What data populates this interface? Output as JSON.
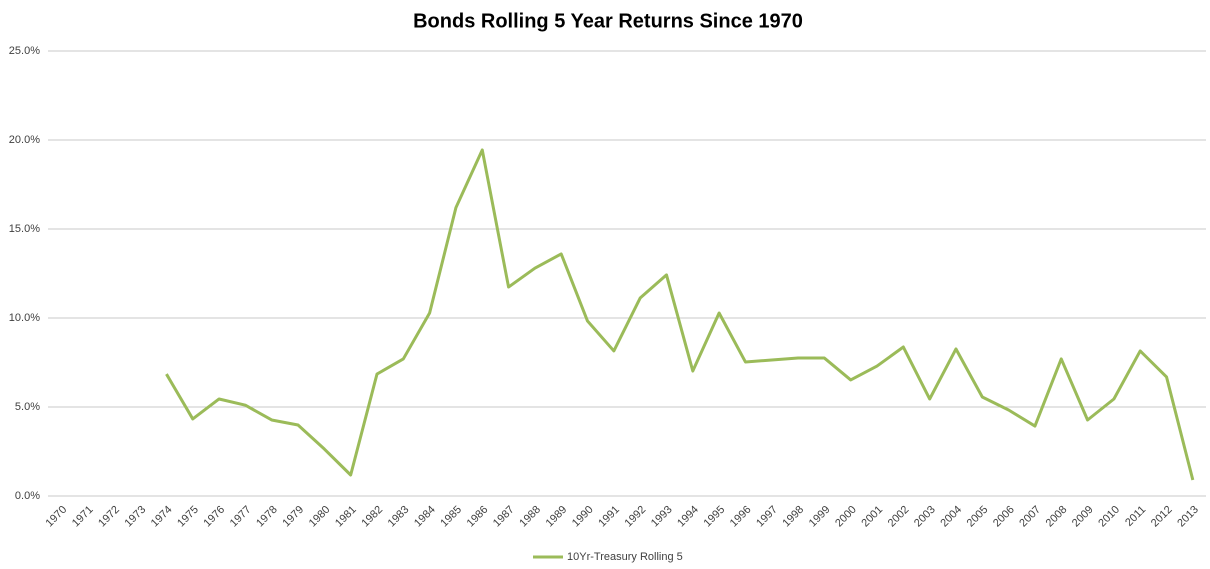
{
  "chart_data": {
    "type": "line",
    "title": "Bonds Rolling 5 Year Returns Since 1970",
    "categories": [
      "1970",
      "1971",
      "1972",
      "1973",
      "1974",
      "1975",
      "1976",
      "1977",
      "1978",
      "1979",
      "1980",
      "1981",
      "1982",
      "1983",
      "1984",
      "1985",
      "1986",
      "1987",
      "1988",
      "1989",
      "1990",
      "1991",
      "1992",
      "1993",
      "1994",
      "1995",
      "1996",
      "1997",
      "1998",
      "1999",
      "2000",
      "2001",
      "2002",
      "2003",
      "2004",
      "2005",
      "2006",
      "2007",
      "2008",
      "2009",
      "2010",
      "2011",
      "2012",
      "2013"
    ],
    "series": [
      {
        "name": "10Yr-Treasury Rolling 5",
        "color": "#9bbb59",
        "values": [
          null,
          null,
          null,
          null,
          6.85,
          4.33,
          5.45,
          5.1,
          4.27,
          3.99,
          2.64,
          1.18,
          6.85,
          7.7,
          10.28,
          16.2,
          19.44,
          11.74,
          12.8,
          13.6,
          9.83,
          8.15,
          11.12,
          12.42,
          7.02,
          10.28,
          7.53,
          7.64,
          7.75,
          7.75,
          6.52,
          7.3,
          8.37,
          5.45,
          8.26,
          5.56,
          4.83,
          3.93,
          7.7,
          4.27,
          5.45,
          8.15,
          6.69,
          0.9
        ]
      }
    ],
    "ylim": [
      0,
      25
    ],
    "yticks": [
      {
        "value": 0,
        "label": "0.0%"
      },
      {
        "value": 5,
        "label": "5.0%"
      },
      {
        "value": 10,
        "label": "10.0%"
      },
      {
        "value": 15,
        "label": "15.0%"
      },
      {
        "value": 20,
        "label": "20.0%"
      },
      {
        "value": 25,
        "label": "25.0%"
      }
    ],
    "grid": true,
    "legend": "bottom"
  }
}
